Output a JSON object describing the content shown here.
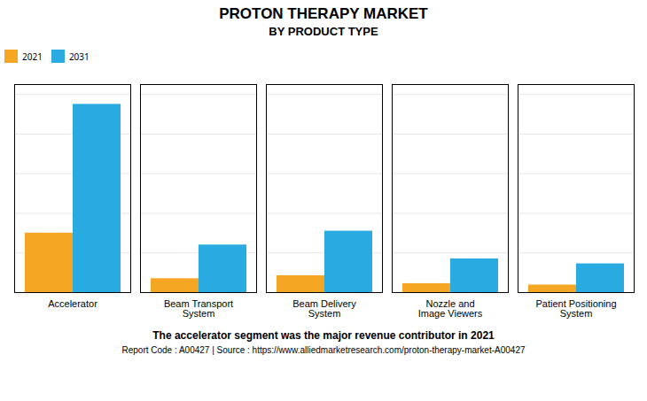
{
  "chart_data": {
    "type": "bar",
    "title": "PROTON THERAPY MARKET",
    "subtitle": "BY PRODUCT TYPE",
    "categories": [
      "Accelerator",
      "Beam Transport\nSystem",
      "Beam Delivery\nSystem",
      "Nozzle and\nImage Viewers",
      "Patient Positioning\nSystem"
    ],
    "series": [
      {
        "name": "2021",
        "color": "#F5A623",
        "values": [
          3.0,
          0.7,
          0.85,
          0.45,
          0.38
        ]
      },
      {
        "name": "2031",
        "color": "#29ABE2",
        "values": [
          9.5,
          2.4,
          3.1,
          1.7,
          1.45
        ]
      }
    ],
    "ylim": [
      0,
      10.5
    ],
    "yticks": [
      0,
      2,
      4,
      6,
      8,
      10
    ],
    "grid": true,
    "legend": "top",
    "tick_labels": "x",
    "annotations": [
      "The accelerator segment was the major revenue contributor in 2021",
      "Report Code : A00427  |  Source : https://www.alliedmarketresearch.com/proton-therapy-market-A00427"
    ]
  }
}
